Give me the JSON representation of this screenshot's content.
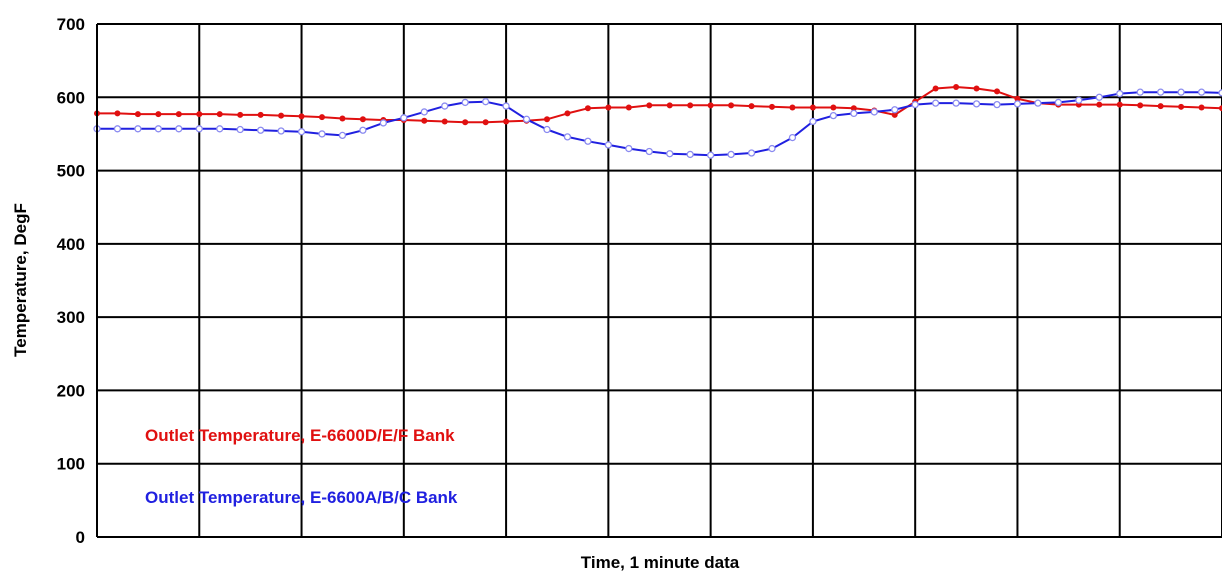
{
  "chart_data": {
    "type": "line",
    "title": "",
    "xlabel": "Time, 1 minute data",
    "ylabel": "Temperature, DegF",
    "ylim": [
      0,
      700
    ],
    "yticks": [
      0,
      100,
      200,
      300,
      400,
      500,
      600,
      700
    ],
    "xlim": [
      0,
      110
    ],
    "grid": true,
    "legend_placement": "bottom-left",
    "series": [
      {
        "name": "Outlet Temperature, E-6600D/E/F Bank",
        "color": "#e01010",
        "marker": "dot",
        "x": [
          0,
          2,
          4,
          6,
          8,
          10,
          12,
          14,
          16,
          18,
          20,
          22,
          24,
          26,
          28,
          30,
          32,
          34,
          36,
          38,
          40,
          42,
          44,
          46,
          48,
          50,
          52,
          54,
          56,
          58,
          60,
          62,
          64,
          66,
          68,
          70,
          72,
          74,
          76,
          78,
          80,
          82,
          84,
          86,
          88,
          90,
          92,
          94,
          96,
          98,
          100,
          102,
          104,
          106,
          108,
          110
        ],
        "values": [
          578,
          578,
          577,
          577,
          577,
          577,
          577,
          576,
          576,
          575,
          574,
          573,
          571,
          570,
          569,
          569,
          568,
          567,
          566,
          566,
          567,
          568,
          570,
          578,
          585,
          586,
          586,
          589,
          589,
          589,
          589,
          589,
          588,
          587,
          586,
          586,
          586,
          585,
          582,
          576,
          594,
          612,
          614,
          612,
          608,
          598,
          592,
          590,
          590,
          590,
          590,
          589,
          588,
          587,
          586,
          585
        ]
      },
      {
        "name": "Outlet Temperature, E-6600A/B/C Bank",
        "color": "#2020e0",
        "marker": "ring",
        "x": [
          0,
          2,
          4,
          6,
          8,
          10,
          12,
          14,
          16,
          18,
          20,
          22,
          24,
          26,
          28,
          30,
          32,
          34,
          36,
          38,
          40,
          42,
          44,
          46,
          48,
          50,
          52,
          54,
          56,
          58,
          60,
          62,
          64,
          66,
          68,
          70,
          72,
          74,
          76,
          78,
          80,
          82,
          84,
          86,
          88,
          90,
          92,
          94,
          96,
          98,
          100,
          102,
          104,
          106,
          108,
          110
        ],
        "values": [
          557,
          557,
          557,
          557,
          557,
          557,
          557,
          556,
          555,
          554,
          553,
          550,
          548,
          555,
          565,
          572,
          580,
          588,
          593,
          594,
          588,
          570,
          556,
          546,
          540,
          535,
          530,
          526,
          523,
          522,
          521,
          522,
          524,
          530,
          545,
          567,
          575,
          578,
          580,
          583,
          590,
          592,
          592,
          591,
          590,
          591,
          592,
          593,
          596,
          600,
          605,
          607,
          607,
          607,
          607,
          606
        ]
      }
    ]
  }
}
